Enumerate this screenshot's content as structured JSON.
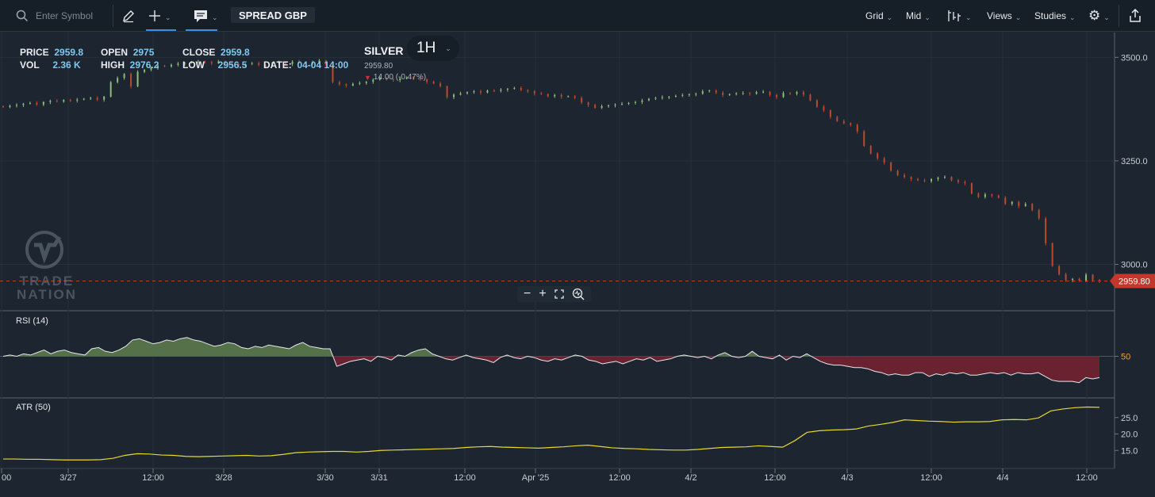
{
  "toolbar": {
    "search_placeholder": "Enter Symbol",
    "account_label": "SPREAD GBP",
    "grid_label": "Grid",
    "price_type_label": "Mid",
    "views_label": "Views",
    "studies_label": "Studies"
  },
  "ohlc": {
    "price_label": "PRICE",
    "price_value": "2959.8",
    "vol_label": "VOL",
    "vol_value": "2.36 K",
    "open_label": "OPEN",
    "open_value": "2975",
    "high_label": "HIGH",
    "high_value": "2976.2",
    "close_label": "CLOSE",
    "close_value": "2959.8",
    "low_label": "LOW",
    "low_value": "2956.5",
    "date_label": "DATE:",
    "date_value": "04-04 14:00"
  },
  "instrument": {
    "name": "SILVER",
    "interval": "1H",
    "last_price": "2959.80",
    "change": "14.00 (-0.47%)"
  },
  "logo": {
    "line1": "TRADE",
    "line2": "NATION"
  },
  "colors": {
    "up": "#8fbd7a",
    "down": "#c0492b",
    "rsi_up_fill": "#55714a",
    "rsi_down_fill": "#6b2230",
    "atr_line": "#e6d92a",
    "price_tag": "#c0392b",
    "accent_line": "#3a8ee6"
  },
  "icons": [
    "search-icon",
    "pencil-icon",
    "crosshair-icon",
    "comment-icon",
    "chart-type-icon",
    "gear-icon",
    "export-icon",
    "zoom-out-icon",
    "zoom-in-icon",
    "fullscreen-icon",
    "zoom-reset-icon"
  ],
  "chart_data": [
    {
      "type": "candlestick",
      "title": "SILVER 1H",
      "ylim": [
        2890,
        3560
      ],
      "y_ticks": [
        {
          "label": "3500.0",
          "value": 3500
        },
        {
          "label": "3250.0",
          "value": 3250
        },
        {
          "label": "3000.0",
          "value": 3000
        }
      ],
      "current_price": 2959.8,
      "current_price_label": "2959.80",
      "closes": [
        3380,
        3383,
        3385,
        3388,
        3390,
        3386,
        3392,
        3395,
        3393,
        3397,
        3396,
        3398,
        3400,
        3402,
        3398,
        3405,
        3440,
        3450,
        3460,
        3430,
        3465,
        3470,
        3475,
        3480,
        3478,
        3482,
        3485,
        3487,
        3488,
        3490,
        3489,
        3486,
        3490,
        3485,
        3483,
        3480,
        3484,
        3486,
        3482,
        3478,
        3486,
        3488,
        3484,
        3490,
        3487,
        3485,
        3489,
        3492,
        3481,
        3440,
        3435,
        3432,
        3436,
        3438,
        3441,
        3446,
        3450,
        3447,
        3445,
        3449,
        3452,
        3448,
        3447,
        3441,
        3437,
        3430,
        3404,
        3410,
        3413,
        3416,
        3418,
        3415,
        3420,
        3419,
        3422,
        3424,
        3426,
        3421,
        3418,
        3413,
        3411,
        3406,
        3409,
        3405,
        3406,
        3402,
        3391,
        3385,
        3378,
        3382,
        3384,
        3386,
        3388,
        3390,
        3392,
        3396,
        3400,
        3402,
        3404,
        3405,
        3407,
        3409,
        3411,
        3412,
        3418,
        3420,
        3415,
        3409,
        3411,
        3413,
        3414,
        3412,
        3416,
        3417,
        3409,
        3404,
        3414,
        3412,
        3416,
        3410,
        3396,
        3381,
        3372,
        3356,
        3346,
        3341,
        3337,
        3321,
        3286,
        3268,
        3256,
        3246,
        3226,
        3216,
        3211,
        3206,
        3203,
        3201,
        3206,
        3209,
        3211,
        3203,
        3199,
        3196,
        3171,
        3163,
        3169,
        3166,
        3161,
        3146,
        3151,
        3141,
        3146,
        3131,
        3111,
        3051,
        2996,
        2976,
        2962,
        2965,
        2960,
        2975,
        2962,
        2959.8
      ],
      "notes": "candle close values estimated from the price axis"
    },
    {
      "type": "area",
      "title": "RSI (14)",
      "baseline": 50,
      "baseline_label": "50",
      "ylim": [
        20,
        80
      ],
      "values": [
        50,
        51,
        50,
        52,
        51,
        53,
        55,
        52,
        54,
        55,
        53,
        52,
        51,
        56,
        57,
        54,
        53,
        55,
        58,
        63,
        64,
        62,
        60,
        61,
        63,
        62,
        64,
        65,
        63,
        62,
        60,
        58,
        59,
        61,
        60,
        57,
        56,
        58,
        57,
        59,
        58,
        57,
        56,
        59,
        61,
        58,
        57,
        56,
        56,
        42,
        44,
        46,
        47,
        48,
        46,
        50,
        49,
        47,
        51,
        50,
        53,
        55,
        56,
        52,
        50,
        48,
        47,
        49,
        51,
        49,
        48,
        47,
        45,
        49,
        51,
        49,
        48,
        50,
        49,
        47,
        46,
        48,
        47,
        49,
        51,
        50,
        47,
        46,
        44,
        45,
        46,
        44,
        46,
        48,
        47,
        49,
        46,
        47,
        48,
        50,
        51,
        50,
        49,
        50,
        48,
        51,
        53,
        50,
        49,
        50,
        54,
        50,
        49,
        48,
        51,
        47,
        50,
        49,
        52,
        49,
        46,
        44,
        43,
        43,
        42,
        41,
        41,
        40,
        38,
        37,
        35,
        36,
        35,
        35,
        37,
        37,
        34,
        36,
        35,
        37,
        36,
        37,
        35,
        35,
        36,
        37,
        36,
        37,
        35,
        37,
        36,
        36,
        37,
        34,
        31,
        30,
        30,
        30,
        29,
        33,
        32,
        33
      ],
      "notes": "estimated from plot"
    },
    {
      "type": "line",
      "title": "ATR (50)",
      "y_ticks": [
        {
          "label": "25.0",
          "value": 25
        },
        {
          "label": "20.0",
          "value": 20
        },
        {
          "label": "15.0",
          "value": 15
        }
      ],
      "ylim": [
        10,
        30
      ],
      "values": [
        12.4,
        12.4,
        12.3,
        12.3,
        12.2,
        12.1,
        12.1,
        12.1,
        12.2,
        12.6,
        13.5,
        14.0,
        13.9,
        13.6,
        13.5,
        13.2,
        13.1,
        13.2,
        13.3,
        13.4,
        13.5,
        13.3,
        13.4,
        13.8,
        14.3,
        14.5,
        14.6,
        14.7,
        14.7,
        14.5,
        14.7,
        15.0,
        15.1,
        15.2,
        15.3,
        15.4,
        15.5,
        15.6,
        15.9,
        16.1,
        16.2,
        16.0,
        15.9,
        15.8,
        15.7,
        15.9,
        16.1,
        16.4,
        16.6,
        16.2,
        15.8,
        15.6,
        15.5,
        15.3,
        15.2,
        15.1,
        15.1,
        15.3,
        15.6,
        15.9,
        16.0,
        16.1,
        16.4,
        16.2,
        16.0,
        18.0,
        20.5,
        21.0,
        21.2,
        21.3,
        21.5,
        22.4,
        22.9,
        23.5,
        24.3,
        24.1,
        23.9,
        23.8,
        23.6,
        23.7,
        23.7,
        23.8,
        24.3,
        24.4,
        24.3,
        24.9,
        27.0,
        27.6,
        28.0,
        28.2,
        28.1
      ],
      "notes": "estimated from plot"
    },
    {
      "type": "time_axis",
      "x_ticks": [
        {
          "label": "00",
          "value": "00"
        },
        {
          "label": "3/27",
          "value": "3/27"
        },
        {
          "label": "12:00",
          "value": "12:00"
        },
        {
          "label": "3/28",
          "value": "3/28"
        },
        {
          "label": "3/30",
          "value": "3/30"
        },
        {
          "label": "3/31",
          "value": "3/31"
        },
        {
          "label": "12:00",
          "value": "12:00"
        },
        {
          "label": "Apr '25",
          "value": "Apr '25"
        },
        {
          "label": "12:00",
          "value": "12:00"
        },
        {
          "label": "4/2",
          "value": "4/2"
        },
        {
          "label": "12:00",
          "value": "12:00"
        },
        {
          "label": "4/3",
          "value": "4/3"
        },
        {
          "label": "12:00",
          "value": "12:00"
        },
        {
          "label": "4/4",
          "value": "4/4"
        },
        {
          "label": "12:00",
          "value": "12:00"
        }
      ]
    }
  ]
}
